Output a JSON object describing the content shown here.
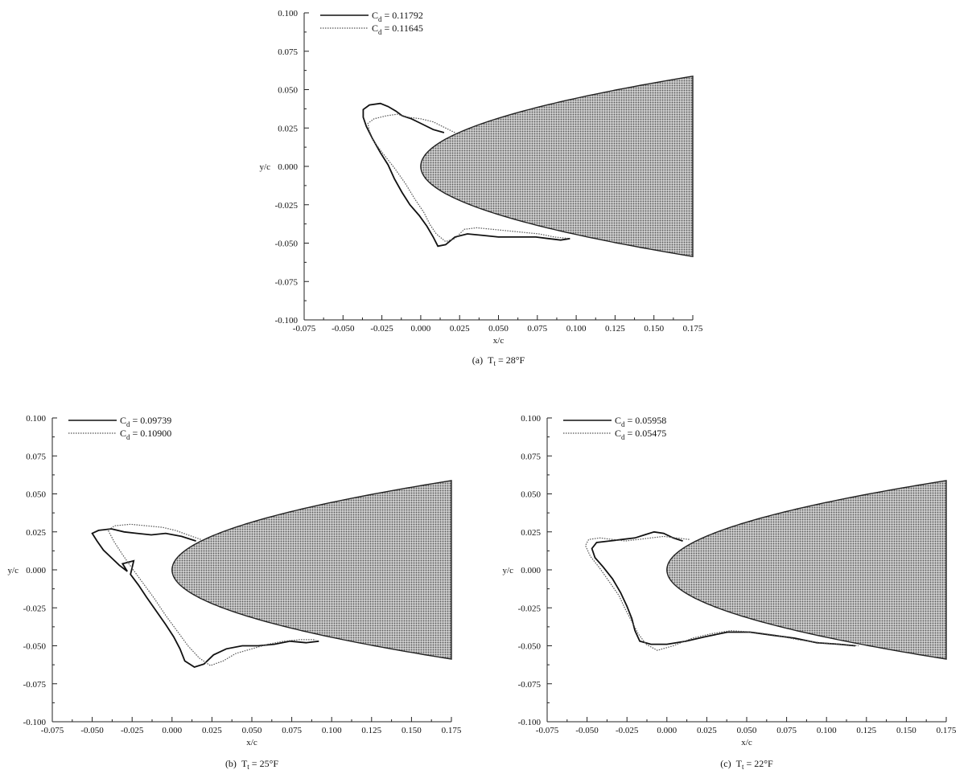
{
  "chart_data": [
    {
      "type": "line",
      "panel_label": "(a)",
      "caption_var": "T",
      "caption_sub": "t",
      "caption_value": " = 28°F",
      "xlabel": "x/c",
      "ylabel": "y/c",
      "xlim": [
        -0.075,
        0.175
      ],
      "ylim": [
        -0.1,
        0.1
      ],
      "xticks": [
        -0.075,
        -0.05,
        -0.025,
        0.0,
        0.025,
        0.05,
        0.075,
        0.1,
        0.125,
        0.15,
        0.175
      ],
      "xtick_labels": [
        "-0.075",
        "-0.050",
        "-0.025",
        "0.000",
        "0.025",
        "0.050",
        "0.075",
        "0.100",
        "0.125",
        "0.150",
        "0.175"
      ],
      "yticks": [
        -0.1,
        -0.075,
        -0.05,
        -0.025,
        0.0,
        0.025,
        0.05,
        0.075,
        0.1
      ],
      "ytick_labels": [
        "-0.100",
        "-0.075",
        "-0.050",
        "-0.025",
        "0.000",
        "0.025",
        "0.050",
        "0.075",
        "0.100"
      ],
      "legend_position": "top-left",
      "airfoil": {
        "leading_edge_x": 0.0,
        "coef": 0.1404,
        "x_end": 0.175,
        "fill": "#9a9a9a"
      },
      "series": [
        {
          "legend_label": "C",
          "legend_sub": "d",
          "legend_value": " = 0.11792",
          "style": "solid",
          "points": [
            [
              0.015,
              0.022
            ],
            [
              0.008,
              0.024
            ],
            [
              0.0,
              0.028
            ],
            [
              -0.006,
              0.031
            ],
            [
              -0.012,
              0.033
            ],
            [
              -0.016,
              0.036
            ],
            [
              -0.021,
              0.039
            ],
            [
              -0.026,
              0.041
            ],
            [
              -0.033,
              0.04
            ],
            [
              -0.037,
              0.037
            ],
            [
              -0.037,
              0.032
            ],
            [
              -0.035,
              0.026
            ],
            [
              -0.031,
              0.018
            ],
            [
              -0.026,
              0.009
            ],
            [
              -0.021,
              0.001
            ],
            [
              -0.017,
              -0.008
            ],
            [
              -0.012,
              -0.017
            ],
            [
              -0.007,
              -0.025
            ],
            [
              -0.001,
              -0.032
            ],
            [
              0.004,
              -0.039
            ],
            [
              0.008,
              -0.046
            ],
            [
              0.011,
              -0.052
            ],
            [
              0.016,
              -0.051
            ],
            [
              0.022,
              -0.046
            ],
            [
              0.03,
              -0.044
            ],
            [
              0.04,
              -0.045
            ],
            [
              0.05,
              -0.046
            ],
            [
              0.058,
              -0.046
            ],
            [
              0.066,
              -0.046
            ],
            [
              0.074,
              -0.046
            ],
            [
              0.082,
              -0.047
            ],
            [
              0.09,
              -0.048
            ],
            [
              0.096,
              -0.047
            ]
          ]
        },
        {
          "legend_label": "C",
          "legend_sub": "d",
          "legend_value": " = 0.11645",
          "style": "dotted",
          "points": [
            [
              0.022,
              0.022
            ],
            [
              0.016,
              0.025
            ],
            [
              0.008,
              0.029
            ],
            [
              0.0,
              0.031
            ],
            [
              -0.008,
              0.032
            ],
            [
              -0.015,
              0.034
            ],
            [
              -0.022,
              0.033
            ],
            [
              -0.03,
              0.031
            ],
            [
              -0.034,
              0.028
            ],
            [
              -0.033,
              0.023
            ],
            [
              -0.03,
              0.016
            ],
            [
              -0.024,
              0.008
            ],
            [
              -0.017,
              -0.001
            ],
            [
              -0.01,
              -0.011
            ],
            [
              -0.004,
              -0.021
            ],
            [
              0.002,
              -0.03
            ],
            [
              0.006,
              -0.038
            ],
            [
              0.01,
              -0.044
            ],
            [
              0.016,
              -0.049
            ],
            [
              0.022,
              -0.047
            ],
            [
              0.028,
              -0.041
            ],
            [
              0.036,
              -0.04
            ],
            [
              0.046,
              -0.041
            ],
            [
              0.056,
              -0.042
            ],
            [
              0.066,
              -0.043
            ],
            [
              0.076,
              -0.044
            ],
            [
              0.086,
              -0.046
            ],
            [
              0.096,
              -0.047
            ]
          ]
        }
      ]
    },
    {
      "type": "line",
      "panel_label": "(b)",
      "caption_var": "T",
      "caption_sub": "t",
      "caption_value": " = 25°F",
      "xlabel": "x/c",
      "ylabel": "y/c",
      "xlim": [
        -0.075,
        0.175
      ],
      "ylim": [
        -0.1,
        0.1
      ],
      "xticks": [
        -0.075,
        -0.05,
        -0.025,
        0.0,
        0.025,
        0.05,
        0.075,
        0.1,
        0.125,
        0.15,
        0.175
      ],
      "xtick_labels": [
        "-0.075",
        "-0.050",
        "-0.025",
        "0.000",
        "0.025",
        "0.050",
        "0.075",
        "0.100",
        "0.125",
        "0.150",
        "0.175"
      ],
      "yticks": [
        -0.1,
        -0.075,
        -0.05,
        -0.025,
        0.0,
        0.025,
        0.05,
        0.075,
        0.1
      ],
      "ytick_labels": [
        "-0.100",
        "-0.075",
        "-0.050",
        "-0.025",
        "0.000",
        "0.025",
        "0.050",
        "0.075",
        "0.100"
      ],
      "legend_position": "top-left",
      "airfoil": {
        "leading_edge_x": 0.0,
        "coef": 0.1404,
        "x_end": 0.175,
        "fill": "#9a9a9a"
      },
      "series": [
        {
          "legend_label": "C",
          "legend_sub": "d",
          "legend_value": " = 0.09739",
          "style": "solid",
          "points": [
            [
              0.015,
              0.019
            ],
            [
              0.006,
              0.022
            ],
            [
              -0.004,
              0.024
            ],
            [
              -0.013,
              0.023
            ],
            [
              -0.022,
              0.024
            ],
            [
              -0.03,
              0.025
            ],
            [
              -0.038,
              0.027
            ],
            [
              -0.046,
              0.026
            ],
            [
              -0.05,
              0.024
            ],
            [
              -0.047,
              0.019
            ],
            [
              -0.043,
              0.013
            ],
            [
              -0.038,
              0.008
            ],
            [
              -0.033,
              0.003
            ],
            [
              -0.028,
              -0.001
            ],
            [
              -0.031,
              0.004
            ],
            [
              -0.024,
              0.006
            ],
            [
              -0.026,
              -0.003
            ],
            [
              -0.021,
              -0.01
            ],
            [
              -0.016,
              -0.018
            ],
            [
              -0.01,
              -0.027
            ],
            [
              -0.004,
              -0.036
            ],
            [
              0.001,
              -0.044
            ],
            [
              0.005,
              -0.052
            ],
            [
              0.008,
              -0.06
            ],
            [
              0.014,
              -0.064
            ],
            [
              0.02,
              -0.062
            ],
            [
              0.026,
              -0.056
            ],
            [
              0.034,
              -0.052
            ],
            [
              0.044,
              -0.05
            ],
            [
              0.054,
              -0.05
            ],
            [
              0.064,
              -0.049
            ],
            [
              0.074,
              -0.047
            ],
            [
              0.084,
              -0.048
            ],
            [
              0.092,
              -0.047
            ]
          ]
        },
        {
          "legend_label": "C",
          "legend_sub": "d",
          "legend_value": " = 0.10900",
          "style": "dotted",
          "points": [
            [
              0.018,
              0.02
            ],
            [
              0.01,
              0.023
            ],
            [
              0.002,
              0.026
            ],
            [
              -0.006,
              0.028
            ],
            [
              -0.016,
              0.029
            ],
            [
              -0.026,
              0.03
            ],
            [
              -0.036,
              0.029
            ],
            [
              -0.04,
              0.026
            ],
            [
              -0.036,
              0.018
            ],
            [
              -0.031,
              0.01
            ],
            [
              -0.025,
              0.001
            ],
            [
              -0.018,
              -0.009
            ],
            [
              -0.011,
              -0.019
            ],
            [
              -0.004,
              -0.03
            ],
            [
              0.003,
              -0.04
            ],
            [
              0.01,
              -0.05
            ],
            [
              0.017,
              -0.058
            ],
            [
              0.024,
              -0.063
            ],
            [
              0.032,
              -0.06
            ],
            [
              0.04,
              -0.055
            ],
            [
              0.05,
              -0.052
            ],
            [
              0.06,
              -0.049
            ],
            [
              0.07,
              -0.047
            ],
            [
              0.08,
              -0.046
            ],
            [
              0.09,
              -0.046
            ]
          ]
        }
      ]
    },
    {
      "type": "line",
      "panel_label": "(c)",
      "caption_var": "T",
      "caption_sub": "t",
      "caption_value": " = 22°F",
      "xlabel": "x/c",
      "ylabel": "y/c",
      "xlim": [
        -0.075,
        0.175
      ],
      "ylim": [
        -0.1,
        0.1
      ],
      "xticks": [
        -0.075,
        -0.05,
        -0.025,
        0.0,
        0.025,
        0.05,
        0.075,
        0.1,
        0.125,
        0.15,
        0.175
      ],
      "xtick_labels": [
        "-0.075",
        "-0.050",
        "-0.025",
        "0.000",
        "0.025",
        "0.050",
        "0.075",
        "0.100",
        "0.125",
        "0.150",
        "0.175"
      ],
      "yticks": [
        -0.1,
        -0.075,
        -0.05,
        -0.025,
        0.0,
        0.025,
        0.05,
        0.075,
        0.1
      ],
      "ytick_labels": [
        "-0.100",
        "-0.075",
        "-0.050",
        "-0.025",
        "0.000",
        "0.025",
        "0.050",
        "0.075",
        "0.100"
      ],
      "legend_position": "top-left",
      "airfoil": {
        "leading_edge_x": 0.0,
        "coef": 0.1404,
        "x_end": 0.175,
        "fill": "#9a9a9a"
      },
      "series": [
        {
          "legend_label": "C",
          "legend_sub": "d",
          "legend_value": " = 0.05958",
          "style": "solid",
          "points": [
            [
              0.01,
              0.019
            ],
            [
              0.004,
              0.021
            ],
            [
              -0.002,
              0.024
            ],
            [
              -0.008,
              0.025
            ],
            [
              -0.014,
              0.023
            ],
            [
              -0.02,
              0.021
            ],
            [
              -0.028,
              0.02
            ],
            [
              -0.036,
              0.019
            ],
            [
              -0.044,
              0.018
            ],
            [
              -0.047,
              0.014
            ],
            [
              -0.045,
              0.008
            ],
            [
              -0.04,
              0.002
            ],
            [
              -0.034,
              -0.006
            ],
            [
              -0.029,
              -0.015
            ],
            [
              -0.025,
              -0.024
            ],
            [
              -0.022,
              -0.032
            ],
            [
              -0.02,
              -0.04
            ],
            [
              -0.017,
              -0.047
            ],
            [
              -0.01,
              -0.049
            ],
            [
              0.0,
              -0.049
            ],
            [
              0.012,
              -0.047
            ],
            [
              0.024,
              -0.044
            ],
            [
              0.038,
              -0.041
            ],
            [
              0.052,
              -0.041
            ],
            [
              0.066,
              -0.043
            ],
            [
              0.08,
              -0.045
            ],
            [
              0.094,
              -0.048
            ],
            [
              0.108,
              -0.049
            ],
            [
              0.118,
              -0.05
            ]
          ]
        },
        {
          "legend_label": "C",
          "legend_sub": "d",
          "legend_value": " = 0.05475",
          "style": "dotted",
          "points": [
            [
              0.014,
              0.02
            ],
            [
              0.006,
              0.021
            ],
            [
              -0.002,
              0.022
            ],
            [
              -0.01,
              0.021
            ],
            [
              -0.018,
              0.02
            ],
            [
              -0.026,
              0.019
            ],
            [
              -0.034,
              0.02
            ],
            [
              -0.042,
              0.021
            ],
            [
              -0.049,
              0.02
            ],
            [
              -0.051,
              0.016
            ],
            [
              -0.048,
              0.009
            ],
            [
              -0.042,
              0.001
            ],
            [
              -0.036,
              -0.008
            ],
            [
              -0.03,
              -0.017
            ],
            [
              -0.026,
              -0.026
            ],
            [
              -0.022,
              -0.034
            ],
            [
              -0.018,
              -0.042
            ],
            [
              -0.013,
              -0.049
            ],
            [
              -0.006,
              -0.053
            ],
            [
              0.004,
              -0.05
            ],
            [
              0.016,
              -0.045
            ],
            [
              0.028,
              -0.042
            ],
            [
              0.04,
              -0.04
            ],
            [
              0.054,
              -0.041
            ],
            [
              0.068,
              -0.043
            ],
            [
              0.082,
              -0.046
            ],
            [
              0.096,
              -0.048
            ],
            [
              0.11,
              -0.049
            ],
            [
              0.12,
              -0.05
            ]
          ]
        }
      ]
    }
  ]
}
